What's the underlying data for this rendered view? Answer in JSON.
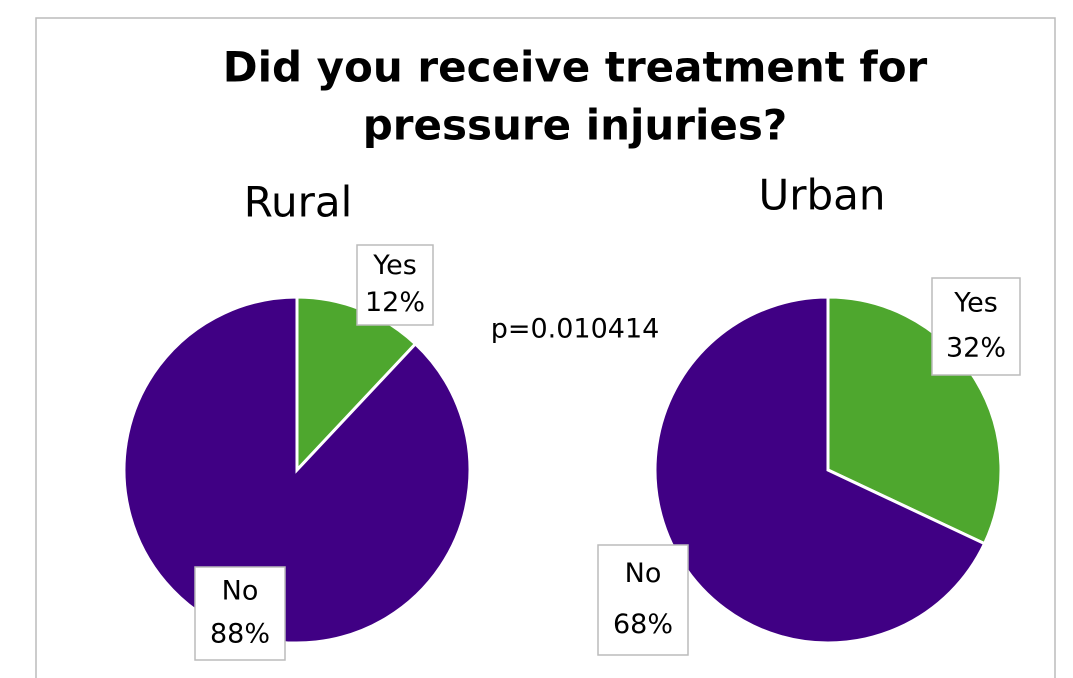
{
  "title": [
    "Did you receive treatment for",
    "pressure injuries?"
  ],
  "annotation": "p=0.010414",
  "chart_data": [
    {
      "type": "pie",
      "title": "Rural",
      "categories": [
        "Yes",
        "No"
      ],
      "values": [
        12,
        88
      ],
      "value_labels": [
        "12%",
        "88%"
      ],
      "colors": [
        "#4ea72e",
        "#400084"
      ]
    },
    {
      "type": "pie",
      "title": "Urban",
      "categories": [
        "Yes",
        "No"
      ],
      "values": [
        32,
        68
      ],
      "value_labels": [
        "32%",
        "68%"
      ],
      "colors": [
        "#4ea72e",
        "#400084"
      ]
    }
  ]
}
